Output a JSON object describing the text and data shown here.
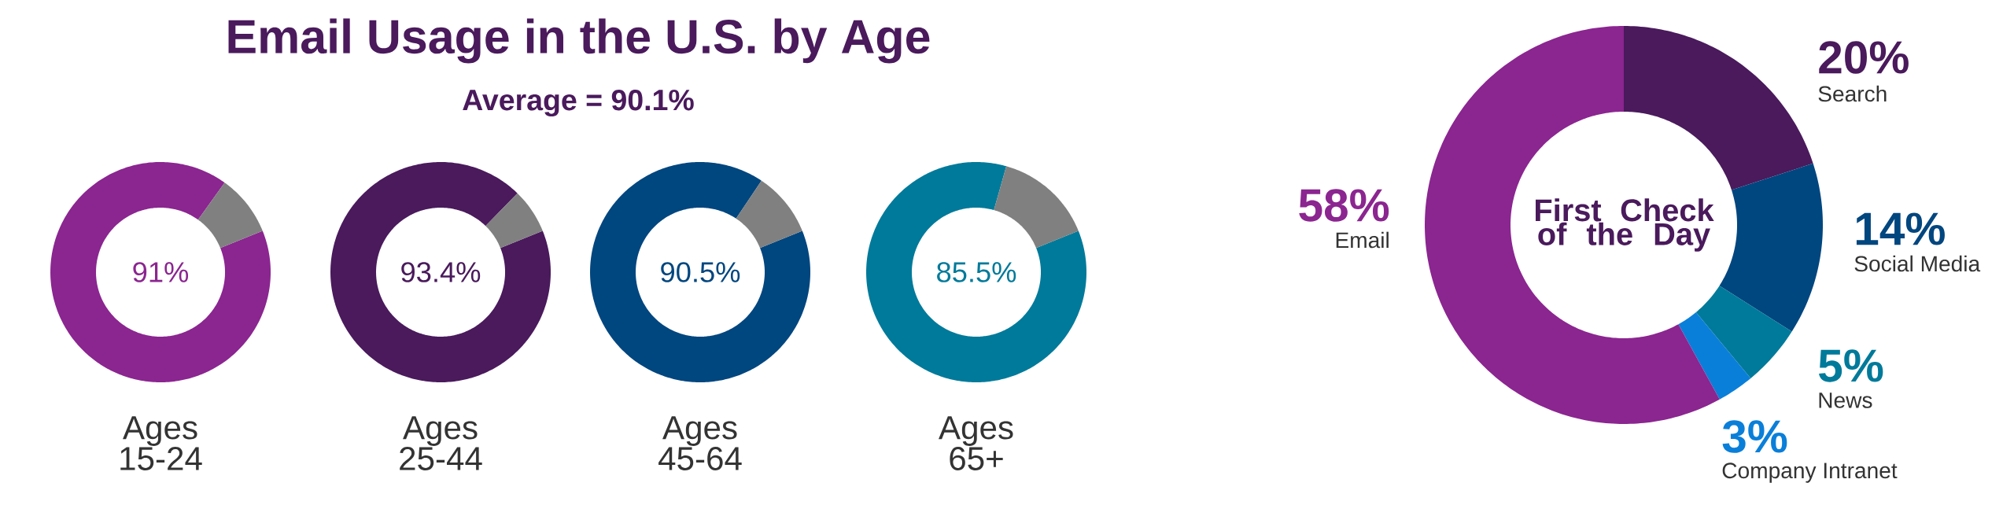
{
  "chart_data": [
    {
      "type": "donut",
      "title": "Email Usage in the U.S. by Age",
      "subtitle": "Average = 90.1%",
      "xlabel": "Ages 15-24",
      "categories": [
        null,
        null
      ],
      "values": [
        91,
        9
      ],
      "colors": [
        "#8b2590",
        "#808080"
      ],
      "value_labels": [
        "91%",
        null
      ]
    },
    {
      "type": "donut",
      "xlabel": "Ages 25-44",
      "categories": [
        null,
        null
      ],
      "values": [
        93.4,
        6.6
      ],
      "colors": [
        "#4a1a5c",
        "#808080"
      ],
      "value_labels": [
        "93.4%",
        null
      ]
    },
    {
      "type": "donut",
      "xlabel": "Ages 45-64",
      "categories": [
        null,
        null
      ],
      "values": [
        90.5,
        9.5
      ],
      "colors": [
        "#00467f",
        "#808080"
      ],
      "value_labels": [
        "90.5%",
        null
      ]
    },
    {
      "type": "donut",
      "xlabel": "Ages 65+",
      "categories": [
        null,
        null
      ],
      "values": [
        85.5,
        14.5
      ],
      "colors": [
        "#007a9a",
        "#808080"
      ],
      "value_labels": [
        "85.5%",
        null
      ]
    },
    {
      "type": "donut",
      "title": "First Check of the Day",
      "categories": [
        "Search",
        "Social Media",
        "News",
        "Company Intranet",
        "Email"
      ],
      "values": [
        20,
        14,
        5,
        3,
        58
      ],
      "colors": [
        "#4a1a5c",
        "#00467f",
        "#007a9a",
        "#0a7fd9",
        "#8b2590"
      ],
      "value_labels": [
        "20%",
        "14%",
        "5%",
        "3%",
        "58%"
      ]
    }
  ]
}
